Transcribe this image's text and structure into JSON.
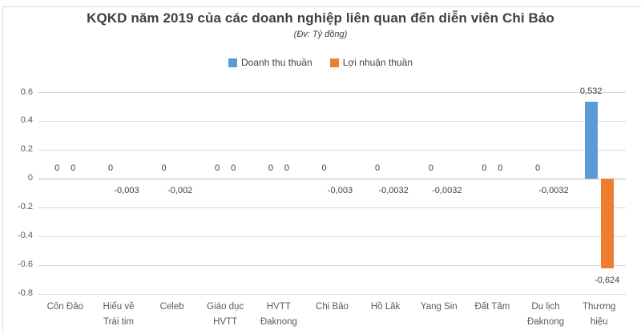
{
  "chart_data": {
    "type": "bar",
    "title": "KQKD năm 2019 của các doanh nghiệp liên quan đến diễn viên Chi Bảo",
    "subtitle": "(Đv: Tỷ đồng)",
    "legend_position": "top",
    "grid": true,
    "background": "#ffffff",
    "gridline_color": "#d9d9d9",
    "categories": [
      "Côn Đảo",
      "Hiểu về Trái tim",
      "Celeb",
      "Giáo dục HVTT",
      "HVTT Đaknong",
      "Chi Bảo",
      "Hồ Lăk",
      "Yang Sin",
      "Đất Tâm",
      "Du lịch Đaknong",
      "Thương hiệu"
    ],
    "category_label_lines": [
      [
        "Côn Đảo"
      ],
      [
        "Hiểu về",
        "Trái tim"
      ],
      [
        "Celeb"
      ],
      [
        "Giáo dục",
        "HVTT"
      ],
      [
        "HVTT",
        "Đaknong"
      ],
      [
        "Chi Bảo"
      ],
      [
        "Hồ Lăk"
      ],
      [
        "Yang Sin"
      ],
      [
        "Đất Tâm"
      ],
      [
        "Du lịch",
        "Đaknong"
      ],
      [
        "Thương",
        "hiệu"
      ]
    ],
    "y_axis": {
      "min": -0.8,
      "max": 0.6,
      "step": 0.2,
      "tick_labels": [
        "0.6",
        "0.4",
        "0.2",
        "0",
        "-0.2",
        "-0.4",
        "-0.6",
        "-0.8"
      ],
      "tick_values": [
        0.6,
        0.4,
        0.2,
        0,
        -0.2,
        -0.4,
        -0.6,
        -0.8
      ]
    },
    "series": [
      {
        "name": "Doanh thu thuần",
        "color": "#5B9BD5",
        "values": [
          0,
          0,
          0,
          0,
          0,
          0,
          0,
          0,
          0,
          0,
          0.532
        ],
        "data_labels": [
          "0",
          "0",
          "0",
          "0",
          "0",
          "0",
          "0",
          "0",
          "0",
          "0",
          "0,532"
        ]
      },
      {
        "name": "Lợi nhuận thuần",
        "color": "#ED7D31",
        "values": [
          0,
          -0.003,
          -0.002,
          0,
          0,
          -0.003,
          -0.0032,
          -0.0032,
          0,
          -0.0032,
          -0.624
        ],
        "data_labels": [
          "0",
          "-0,003",
          "-0,002",
          "0",
          "0",
          "-0,003",
          "-0,0032",
          "-0,0032",
          "0",
          "-0,0032",
          "-0,624"
        ]
      }
    ]
  }
}
